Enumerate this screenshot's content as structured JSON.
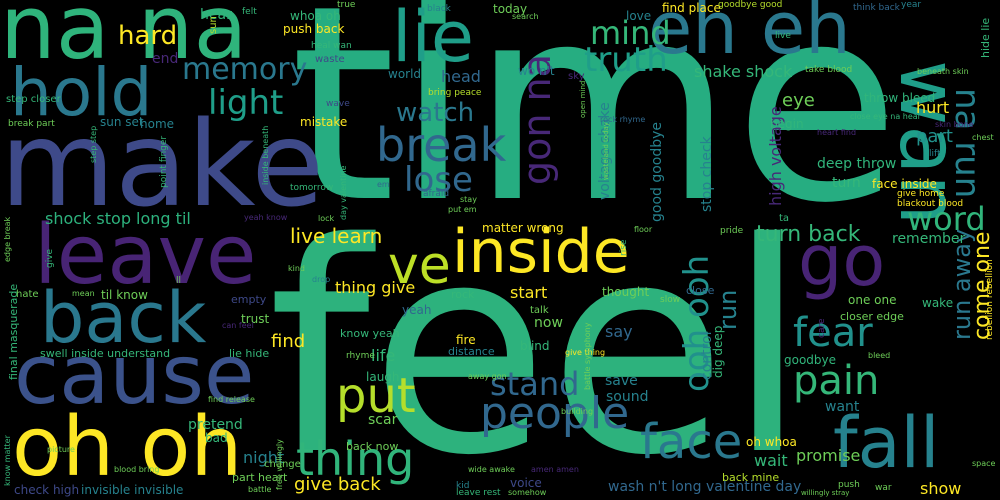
{
  "background": "#000000",
  "palette": [
    "#fde725",
    "#b5de2b",
    "#6ece58",
    "#35b779",
    "#1f9e89",
    "#26828e",
    "#31688e",
    "#3e4989",
    "#482878",
    "#440154"
  ],
  "words": {
    "time": "time",
    "feel": "feel",
    "make": "make",
    "na_na": "na na",
    "lie": "lie",
    "eh_eh": "eh eh",
    "hold": "hold",
    "leave": "leave",
    "back": "back",
    "cause": "cause",
    "oh_oh": "oh oh",
    "inside": "inside",
    "wan": "wan",
    "go": "go",
    "fall": "fall",
    "break": "break",
    "gon_na": "gon na",
    "thing": "thing",
    "people": "people",
    "face": "face",
    "put": "put",
    "stand": "stand",
    "fear": "fear",
    "pain": "pain",
    "light": "light",
    "memory": "memory",
    "hard": "hard",
    "mind": "mind",
    "truth": "truth",
    "watch": "watch",
    "lose": "lose",
    "word": "word",
    "run_away": "run away",
    "na_run": "na run",
    "ve": "ve",
    "ooh_ooh": "ooh ooh",
    "run": "run",
    "live_learn": "live learn",
    "turn_back": "turn back",
    "give_back": "give back",
    "come_one": "come one",
    "shake_shock": "shake shock",
    "high_voltage": "high voltage",
    "deep_throw": "deep throw",
    "shock_stop_long_til": "shock stop long til",
    "find": "find",
    "life": "life",
    "remember": "remember",
    "eye": "eye",
    "hurt": "hurt",
    "part": "part",
    "thing_give": "thing give",
    "start": "start",
    "now": "now",
    "say": "say",
    "save": "save",
    "sound": "sound",
    "promise": "promise",
    "wait": "wait",
    "want": "want",
    "show": "show",
    "night": "night",
    "pretend": "pretend",
    "bad": "bad",
    "scar": "scar",
    "laugh": "laugh",
    "head": "head",
    "world": "world",
    "hear": "hear",
    "end": "end",
    "today": "today",
    "find_place": "find place",
    "love": "love",
    "begin": "begin",
    "throw_bleed": "throw bleed",
    "mistake": "mistake",
    "home": "home",
    "sun_set": "sun set",
    "push_back": "push back",
    "whoa_oh": "whoa oh",
    "wo_nt": "wo n't",
    "voltage_shake": "voltage shake",
    "good_goodbye": "good goodbye",
    "stop_check": "stop check",
    "turn": "turn",
    "face_inside": "face inside",
    "one_one": "one one",
    "wake": "wake",
    "closer_edge": "closer edge",
    "goodbye": "goodbye",
    "oh_whoa": "oh whoa",
    "wash_nt_long_valentine_day": "wash n't long valentine day",
    "control": "control",
    "dig_deep": "dig deep",
    "matter_wrong": "matter wrong",
    "thought": "thought",
    "close": "close",
    "rock": "rock",
    "yeah": "yeah",
    "trust": "trust",
    "empty": "empty",
    "til_know": "til know",
    "know_yeah": "know yeah",
    "lie_hide": "lie hide",
    "swell_inside_understand": "swell inside understand",
    "invisible_invisible": "invisible invisible",
    "check_high": "check high",
    "back_now": "back now",
    "fire": "fire",
    "blind": "blind",
    "distance": "distance",
    "talk": "talk",
    "part_heart": "part heart",
    "back_mine": "back mine",
    "voice": "voice",
    "leave_rest": "leave rest",
    "kid": "kid",
    "ta": "ta",
    "final_masquerade": "final masquerade",
    "step_closer": "step closer",
    "break_part": "break part",
    "heal_wan": "heal wan",
    "waste": "waste",
    "true": "true",
    "felt": "felt",
    "sun": "sun",
    "black": "black",
    "search": "search",
    "goodbye_good": "goodbye good",
    "think_back": "think back",
    "year": "year",
    "hide_lie": "hide lie",
    "take_blood": "take blood",
    "beneath_skin": "beneath skin",
    "skin_bone": "skin bone",
    "chest": "chest",
    "lift": "lift",
    "give_home": "give home",
    "blackout_blood": "blackout blood",
    "close_eye_na_heal": "close eye na heal",
    "heart_find": "heart find",
    "sky": "sky",
    "bring_peace": "bring peace",
    "wave": "wave",
    "inside_beneath": "inside beneath",
    "step_step": "step step",
    "point_finger": "point finger",
    "tomorrow": "tomorrow",
    "day_valentine": "day valentine",
    "afraid": "afraid",
    "stay": "stay",
    "put_em": "put em",
    "yeah_know": "yeah know",
    "lock": "lock",
    "kind": "kind",
    "drop": "drop",
    "mean": "mean",
    "hate": "hate",
    "ll": "ll",
    "give": "give",
    "edge_break": "edge break",
    "rise": "rise",
    "floor": "floor",
    "pride": "pride",
    "slow": "slow",
    "care": "care",
    "bleed": "bleed",
    "rebellion_rebellion": "rebellion rebellion",
    "give_thing": "give thing",
    "rhyme": "rhyme",
    "battle_symphony": "battle symphony",
    "building": "building",
    "amen_amen": "amen amen",
    "wide_awake": "wide awake",
    "somehow": "somehow",
    "push": "push",
    "war": "war",
    "willingly_stray": "willingly stray",
    "space": "space",
    "change": "change",
    "free_willingly": "free willingly",
    "battle": "battle",
    "picture": "picture",
    "know_matter": "know matter",
    "blood_bring": "blood bring",
    "find_release": "find release",
    "can_feel": "can feel",
    "away_gon": "away gon",
    "em": "em",
    "open_mind": "open mind",
    "rock_rhyme": "rock rhyme",
    "wasteland_today": "wasteland today",
    "live": "live"
  }
}
